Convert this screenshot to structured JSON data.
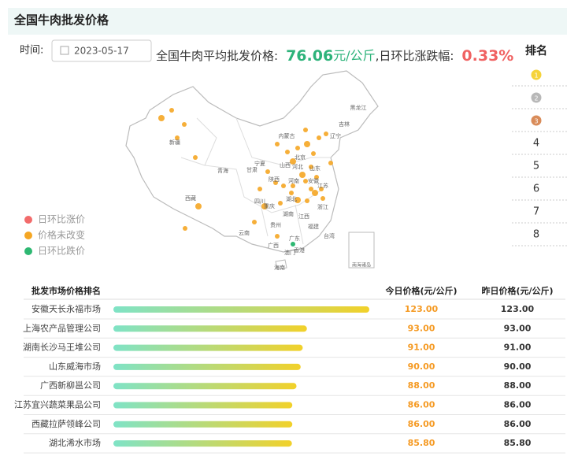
{
  "header": {
    "title": "全国牛肉批发价格"
  },
  "date": {
    "label": "时间:",
    "value": "2023-05-17"
  },
  "summary": {
    "label": "全国牛肉平均批发价格:",
    "price": "76.06",
    "unit": "元/公斤",
    "change_label": ",日环比涨跌幅:",
    "change": "0.33%"
  },
  "rank_panel": {
    "title": "排名",
    "ranks": [
      "1",
      "2",
      "3",
      "4",
      "5",
      "6",
      "7",
      "8"
    ]
  },
  "map": {
    "labels": [
      "新疆",
      "青海",
      "西藏",
      "甘肃",
      "内蒙古",
      "黑龙江",
      "吉林",
      "辽宁",
      "北京",
      "河北",
      "山西",
      "山东",
      "河南",
      "陕西",
      "宁夏",
      "四川",
      "重庆",
      "湖北",
      "安徽",
      "江苏",
      "浙江",
      "江西",
      "湖南",
      "贵州",
      "云南",
      "广西",
      "广东",
      "福建",
      "台湾",
      "香港",
      "澳门",
      "海南",
      "南海诸岛"
    ]
  },
  "legend": [
    {
      "name": "日环比涨价",
      "color": "#f26b6b"
    },
    {
      "name": "价格未改变",
      "color": "#f5a623"
    },
    {
      "name": "日环比跌价",
      "color": "#2eb872"
    }
  ],
  "table": {
    "headers": [
      "批发市场价格排名",
      "今日价格(元/公斤)",
      "昨日价格(元/公斤)"
    ],
    "rows": [
      {
        "name": "安徽天长永福市场",
        "today": 123,
        "today_label": "123.00",
        "yesterday": "123.00"
      },
      {
        "name": "上海农产品管理公司",
        "today": 93,
        "today_label": "93.00",
        "yesterday": "93.00"
      },
      {
        "name": "湖南长沙马王堆公司",
        "today": 91,
        "today_label": "91.00",
        "yesterday": "91.00"
      },
      {
        "name": "山东威海市场",
        "today": 90,
        "today_label": "90.00",
        "yesterday": "90.00"
      },
      {
        "name": "广西新柳邕公司",
        "today": 88,
        "today_label": "88.00",
        "yesterday": "88.00"
      },
      {
        "name": "江苏宜兴蔬菜果品公司",
        "today": 86,
        "today_label": "86.00",
        "yesterday": "86.00"
      },
      {
        "name": "西藏拉萨领峰公司",
        "today": 86,
        "today_label": "86.00",
        "yesterday": "86.00"
      },
      {
        "name": "湖北浠水市场",
        "today": 85.8,
        "today_label": "85.80",
        "yesterday": "85.80"
      }
    ]
  }
}
